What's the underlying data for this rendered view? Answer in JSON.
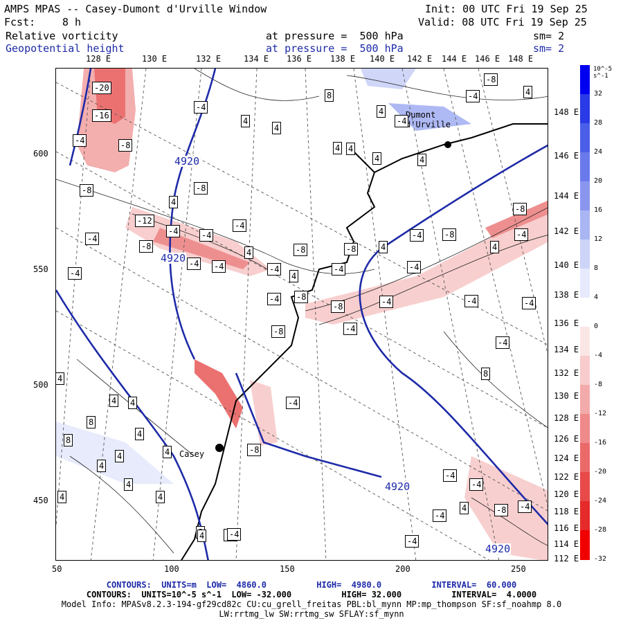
{
  "header": {
    "title": "AMPS MPAS -- Casey-Dumont d'Urville Window",
    "init": "Init: 00 UTC Fri 19 Sep 25",
    "fcst_label": "Fcst:",
    "fcst_value": "8 h",
    "valid": "Valid: 08 UTC Fri 19 Sep 25",
    "field1_name": "Relative vorticity",
    "field1_level": "at pressure =  500 hPa",
    "field1_sm": "sm= 2",
    "field2_name": "Geopotential height",
    "field2_level": "at pressure =  500 hPa",
    "field2_sm": "sm= 2"
  },
  "top_lon_labels": [
    "128 E",
    "130 E",
    "132 E",
    "134 E",
    "136 E",
    "138 E",
    "140 E",
    "142 E",
    "144 E",
    "146 E",
    "148 E"
  ],
  "right_lon_labels": [
    "148 E",
    "146 E",
    "144 E",
    "142 E",
    "140 E",
    "138 E",
    "136 E",
    "134 E",
    "132 E",
    "130 E",
    "128 E",
    "126 E",
    "124 E",
    "122 E",
    "120 E",
    "118 E",
    "116 E",
    "114 E",
    "112 E"
  ],
  "left_axis_ticks": [
    "600",
    "550",
    "500",
    "450"
  ],
  "bottom_axis_ticks": [
    "50",
    "100",
    "150",
    "200",
    "250"
  ],
  "colorbar": {
    "unit_label": "10^-5 s^-1",
    "ticks": [
      "32",
      "28",
      "24",
      "20",
      "16",
      "12",
      "8",
      "4",
      "0",
      "-4",
      "-8",
      "-12",
      "-16",
      "-20",
      "-24",
      "-28",
      "-32"
    ],
    "colors": [
      "#0000f0",
      "#2a3ae6",
      "#4a5ee8",
      "#6a7aea",
      "#8a96ee",
      "#aab6f3",
      "#ccd4f8",
      "#e6eafc",
      "#ffffff",
      "#fbe6e6",
      "#f8cccc",
      "#f3aaaa",
      "#ee8a8a",
      "#ea6a6a",
      "#e84a4a",
      "#e62a2a",
      "#f00000"
    ]
  },
  "places": [
    {
      "name": "Dumont",
      "name2": "d'Urville"
    },
    {
      "name": "Casey"
    }
  ],
  "vort_labels": [
    "-20",
    "-16",
    "-4",
    "-8",
    "-8",
    "-4",
    "-4",
    "-4",
    "4",
    "4",
    "8",
    "4",
    "-4",
    "4",
    "-8",
    "-4",
    "4",
    "-8",
    "-12",
    "-4",
    "-4",
    "-4",
    "-8",
    "4",
    "4",
    "-8",
    "-4",
    "-4",
    "-4",
    "-4",
    "-8",
    "4",
    "-4",
    "-4",
    "4",
    "4",
    "-8",
    "-4",
    "-8",
    "-4",
    "-8",
    "-4",
    "-4",
    "-4",
    "-4",
    "-8",
    "-4",
    "8",
    "4",
    "4",
    "4",
    "8",
    "4",
    "8",
    "4",
    "4",
    "4",
    "4",
    "4",
    "4",
    "-8",
    "-4",
    "-4",
    "-4",
    "-8",
    "-4",
    "4",
    "-4",
    "-4",
    "-4",
    "8",
    "4",
    "4",
    "4",
    "4",
    "-8",
    "4",
    "-4",
    "-4"
  ],
  "height_labels": [
    "4920",
    "4920",
    "4920",
    "4920"
  ],
  "footer": {
    "contours1": "CONTOURS:  UNITS=m  LOW=  4860.0          HIGH=  4980.0          INTERVAL=  60.000",
    "contours2": "CONTOURS:  UNITS=10^-5 s^-1  LOW= -32.000          HIGH= 32.000          INTERVAL=  4.0000",
    "model_info": "Model Info: MPASv8.2.3-194-gf29cd82c CU:cu_grell_freitas PBL:bl_mynn MP:mp_thompson SF:sf_noahmp 8.0",
    "model_info2": "LW:rrtmg_lw SW:rrtmg_sw SFLAY:sf_mynn"
  }
}
